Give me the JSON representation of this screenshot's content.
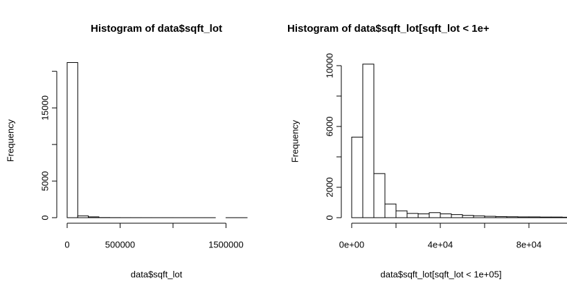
{
  "chart_data": [
    {
      "type": "histogram",
      "title": "Histogram of data$sqft_lot",
      "xlabel": "data$sqft_lot",
      "ylabel": "Frequency",
      "bins": [
        0,
        100000,
        200000,
        300000,
        400000,
        500000,
        600000,
        700000,
        800000,
        900000,
        1000000,
        1100000,
        1200000,
        1300000,
        1400000,
        1500000,
        1600000,
        1700000
      ],
      "values": [
        21200,
        250,
        110,
        20,
        10,
        5,
        4,
        3,
        2,
        2,
        1,
        1,
        1,
        1,
        0,
        1,
        1
      ],
      "color": "#ffffff",
      "xlim": [
        0,
        1700000
      ],
      "xticks": [
        0,
        500000,
        {
          "value": 1000000,
          "label": null
        },
        1500000
      ],
      "ylim": [
        0,
        22000
      ],
      "yticks": [
        0,
        5000,
        {
          "value": 10000,
          "label": null
        },
        15000,
        {
          "value": 20000,
          "label": null
        }
      ]
    },
    {
      "type": "histogram",
      "title": "Histogram of data$sqft_lot[sqft_lot < 1e+",
      "xlabel": "data$sqft_lot[sqft_lot < 1e+05]",
      "ylabel": "Frequency",
      "bins": [
        0,
        5000,
        10000,
        15000,
        20000,
        25000,
        30000,
        35000,
        40000,
        45000,
        50000,
        55000,
        60000,
        65000,
        70000,
        75000,
        80000,
        85000,
        90000,
        95000,
        100000
      ],
      "values": [
        5300,
        10100,
        2900,
        900,
        450,
        280,
        250,
        330,
        250,
        200,
        150,
        120,
        90,
        70,
        60,
        50,
        50,
        40,
        40,
        30
      ],
      "color": "#ffffff",
      "xlim": [
        0,
        100000
      ],
      "xticks": [
        {
          "value": 0,
          "label": "0e+00"
        },
        {
          "value": 20000,
          "label": null
        },
        {
          "value": 40000,
          "label": "4e+04"
        },
        {
          "value": 60000,
          "label": null
        },
        {
          "value": 80000,
          "label": "8e+04"
        },
        {
          "value": 100000,
          "label": null
        }
      ],
      "ylim": [
        0,
        10500
      ],
      "yticks": [
        0,
        2000,
        {
          "value": 4000,
          "label": null
        },
        6000,
        {
          "value": 8000,
          "label": null
        },
        10000
      ]
    }
  ]
}
